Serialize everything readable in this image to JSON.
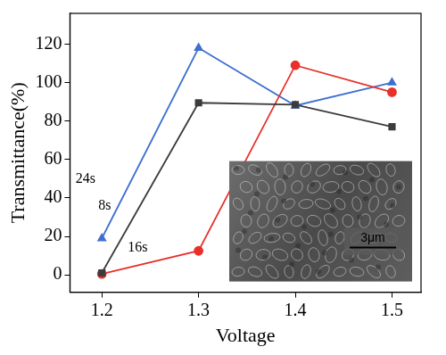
{
  "chart_data": {
    "type": "line",
    "x_label": "Voltage",
    "y_label": "Transmittance(%)",
    "x": [
      1.2,
      1.3,
      1.4,
      1.5
    ],
    "series": [
      {
        "name": "8s",
        "color": "#3c3c3c",
        "marker": "square",
        "line_style": "solid",
        "values": [
          1,
          89.5,
          88.5,
          77
        ],
        "label_at": {
          "x": 1.203,
          "y": 36
        }
      },
      {
        "name": "16s",
        "color": "#e8302a",
        "marker": "circle",
        "line_style": "solid",
        "values": [
          0.5,
          12.5,
          109,
          95
        ],
        "label_at": {
          "x": 1.237,
          "y": 14
        }
      },
      {
        "name": "24s",
        "color": "#3e6fd0",
        "marker": "triangle",
        "line_style": "solid",
        "values": [
          19,
          118,
          88,
          100
        ],
        "label_at": {
          "x": 1.183,
          "y": 50
        }
      }
    ],
    "xlim": [
      1.167,
      1.53
    ],
    "xticks": [
      1.2,
      1.3,
      1.4,
      1.5
    ],
    "ylim": [
      -9,
      136
    ],
    "yticks": [
      0,
      20,
      40,
      60,
      80,
      100,
      120
    ],
    "grid": false,
    "inset": {
      "type": "image",
      "scale_bar": "3μm"
    }
  }
}
